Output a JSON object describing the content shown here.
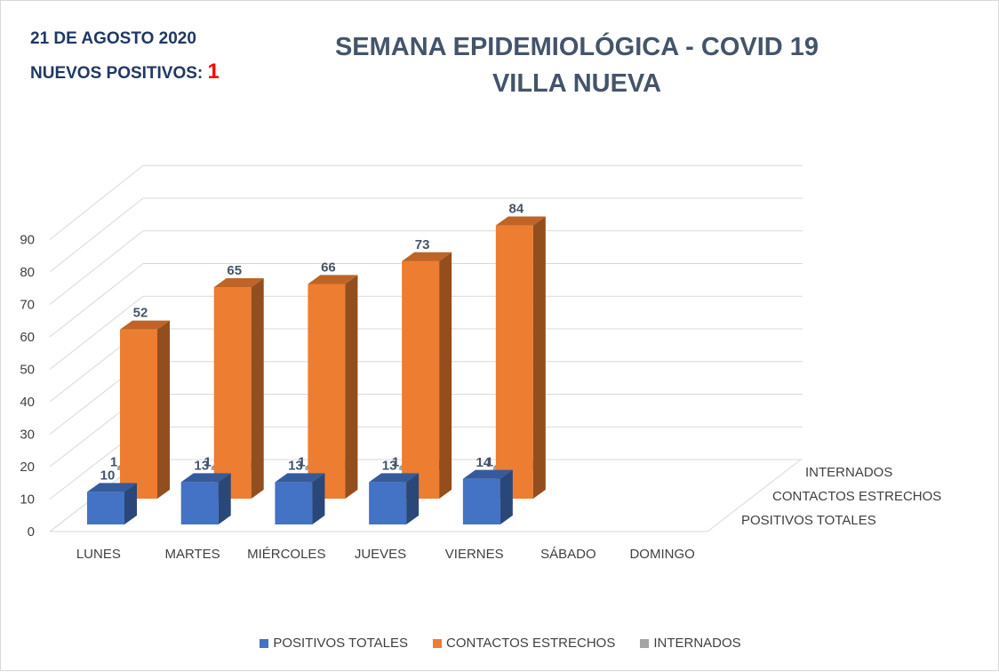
{
  "header": {
    "date": "21 DE AGOSTO 2020",
    "new_positives_label": "NUEVOS POSITIVOS:",
    "new_positives_value": "1",
    "title_line1": "SEMANA EPIDEMIOLÓGICA - COVID 19",
    "title_line2": "VILLA NUEVA"
  },
  "chart_data": {
    "type": "bar",
    "subtype": "3d-column",
    "categories": [
      "LUNES",
      "MARTES",
      "MIÉRCOLES",
      "JUEVES",
      "VIERNES",
      "SÁBADO",
      "DOMINGO"
    ],
    "series": [
      {
        "name": "POSITIVOS TOTALES",
        "values": [
          10,
          13,
          13,
          13,
          14,
          null,
          null
        ],
        "color": "#4472c4"
      },
      {
        "name": "CONTACTOS ESTRECHOS",
        "values": [
          52,
          65,
          66,
          73,
          84,
          null,
          null
        ],
        "color": "#ed7d31"
      },
      {
        "name": "INTERNADOS",
        "values": [
          1,
          1,
          1,
          1,
          1,
          null,
          null
        ],
        "color": "#a5a5a5"
      }
    ],
    "y_ticks": [
      0,
      10,
      20,
      30,
      40,
      50,
      60,
      70,
      80,
      90
    ],
    "ylim": [
      0,
      90
    ],
    "depth_axis_labels": [
      "INTERNADOS",
      "CONTACTOS ESTRECHOS",
      "POSITIVOS TOTALES"
    ],
    "legend_position": "bottom",
    "grid": true
  }
}
